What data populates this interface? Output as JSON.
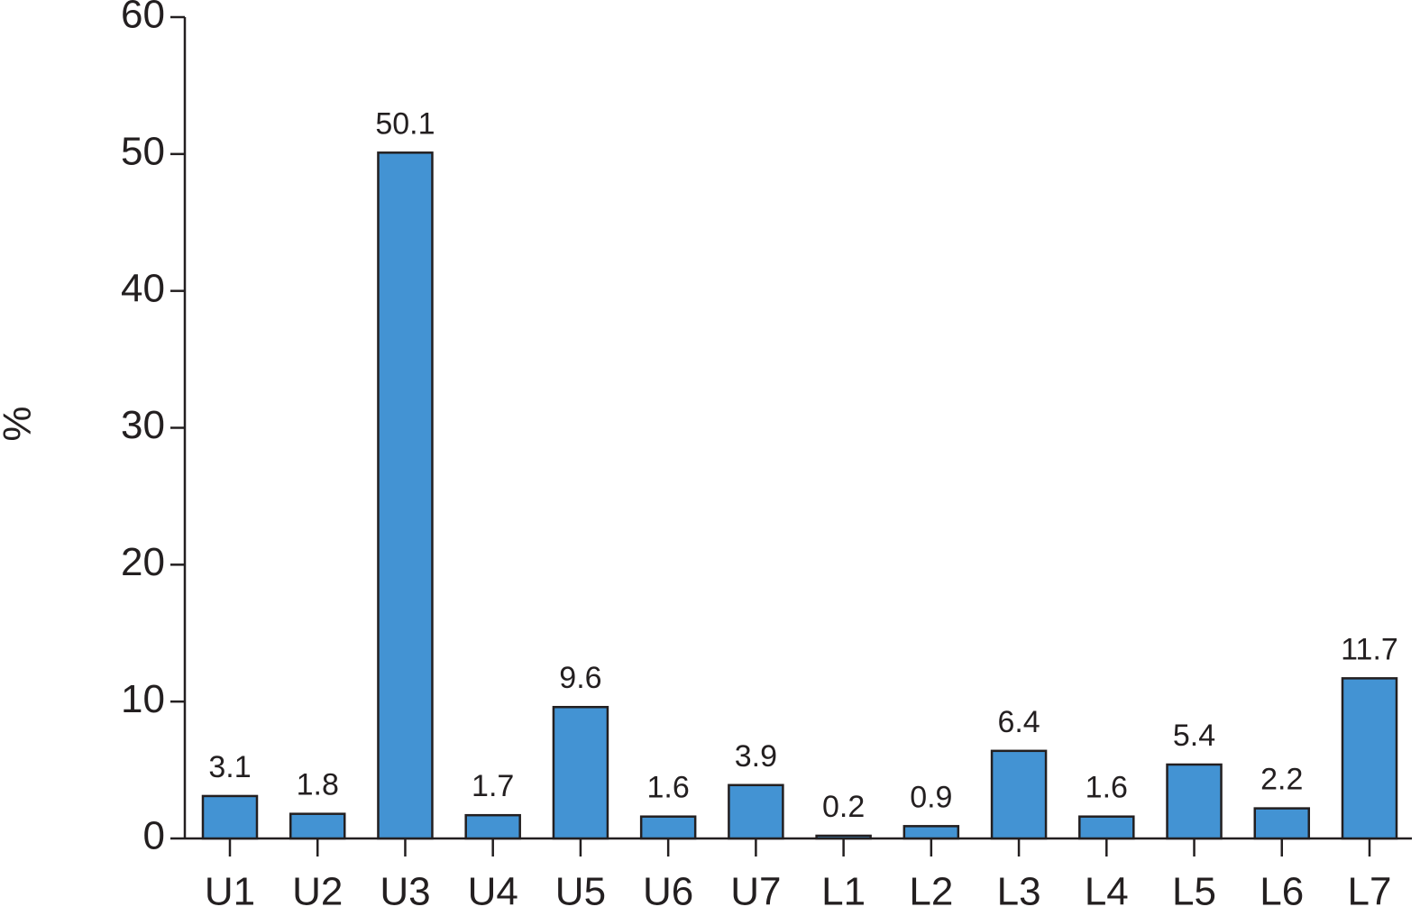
{
  "chart_data": {
    "type": "bar",
    "y_label": "%",
    "categories": [
      "U1",
      "U2",
      "U3",
      "U4",
      "U5",
      "U6",
      "U7",
      "L1",
      "L2",
      "L3",
      "L4",
      "L5",
      "L6",
      "L7"
    ],
    "values": [
      3.1,
      1.8,
      50.1,
      1.7,
      9.6,
      1.6,
      3.9,
      0.2,
      0.9,
      6.4,
      1.6,
      5.4,
      2.2,
      11.7
    ],
    "color": "#4393d3",
    "ylim": [
      0,
      60
    ],
    "yticks": [
      0,
      10,
      20,
      30,
      40,
      50,
      60
    ],
    "grid": false
  }
}
